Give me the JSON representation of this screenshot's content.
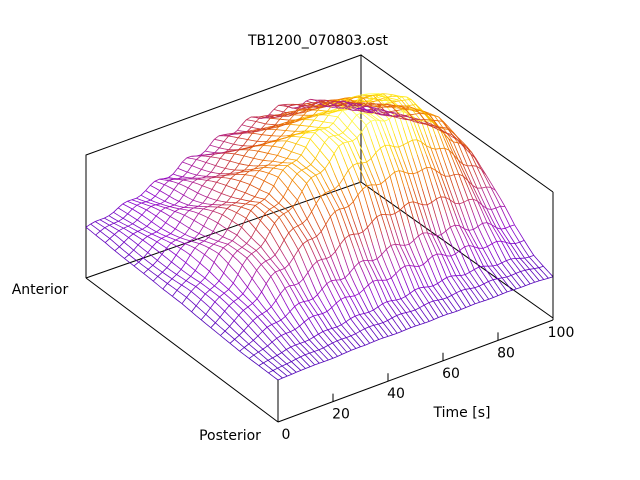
{
  "chart_data": {
    "type": "surface",
    "title": "TB1200_070803.ost",
    "xlabel": "Time [s]",
    "xlim": [
      0,
      100
    ],
    "x_ticks": [
      0,
      20,
      40,
      60,
      80,
      100
    ],
    "y_labels": {
      "front": "Posterior",
      "back": "Anterior"
    },
    "grid": false,
    "legend": "none",
    "colormap": [
      "#4b00b5",
      "#8a00cc",
      "#b02090",
      "#d24018",
      "#f07a00",
      "#ffd800",
      "#ffff55"
    ],
    "surface": {
      "time": [
        0,
        10,
        20,
        30,
        40,
        50,
        60,
        70,
        80,
        90,
        100
      ],
      "position": [
        0,
        0.1,
        0.2,
        0.3,
        0.4,
        0.5,
        0.6,
        0.7,
        0.8,
        0.9,
        1.0
      ],
      "values": [
        [
          0.0,
          0.0,
          0.0,
          0.01,
          0.02,
          0.03,
          0.03,
          0.04,
          0.05,
          0.06,
          0.06
        ],
        [
          0.01,
          0.04,
          0.09,
          0.14,
          0.18,
          0.2,
          0.19,
          0.17,
          0.15,
          0.13,
          0.1
        ],
        [
          0.01,
          0.06,
          0.16,
          0.3,
          0.38,
          0.4,
          0.36,
          0.3,
          0.24,
          0.2,
          0.16
        ],
        [
          0.02,
          0.08,
          0.22,
          0.42,
          0.55,
          0.58,
          0.52,
          0.44,
          0.36,
          0.29,
          0.22
        ],
        [
          0.02,
          0.1,
          0.28,
          0.55,
          0.72,
          0.75,
          0.68,
          0.58,
          0.48,
          0.38,
          0.29
        ],
        [
          0.02,
          0.11,
          0.32,
          0.65,
          0.87,
          0.9,
          0.8,
          0.68,
          0.56,
          0.45,
          0.35
        ],
        [
          0.02,
          0.12,
          0.34,
          0.7,
          0.96,
          0.98,
          0.86,
          0.74,
          0.61,
          0.49,
          0.39
        ],
        [
          0.02,
          0.12,
          0.33,
          0.68,
          0.98,
          1.0,
          0.88,
          0.76,
          0.63,
          0.5,
          0.4
        ],
        [
          0.02,
          0.11,
          0.3,
          0.6,
          0.88,
          0.92,
          0.82,
          0.7,
          0.58,
          0.47,
          0.37
        ],
        [
          0.02,
          0.09,
          0.24,
          0.46,
          0.68,
          0.74,
          0.66,
          0.56,
          0.46,
          0.37,
          0.29
        ],
        [
          0.01,
          0.06,
          0.16,
          0.3,
          0.45,
          0.5,
          0.46,
          0.39,
          0.32,
          0.26,
          0.2
        ]
      ]
    }
  }
}
